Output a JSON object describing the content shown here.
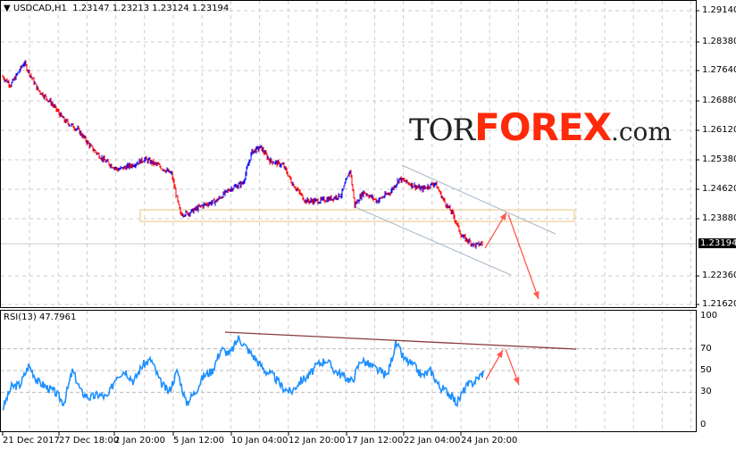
{
  "header": {
    "symbol": "USDCAD,H1",
    "open": "1.23147",
    "high": "1.23213",
    "low": "1.23124",
    "close": "1.23194"
  },
  "logo": {
    "part1": "TOR",
    "part2": "FOREX",
    "part3": ".com"
  },
  "price_axis": {
    "ticks": [
      "1.29140",
      "1.28380",
      "1.27640",
      "1.26880",
      "1.26120",
      "1.25380",
      "1.24620",
      "1.23880",
      "1.22360",
      "1.21620"
    ],
    "current": "1.23194"
  },
  "rsi": {
    "title": "RSI(13) 47.7961",
    "ticks": [
      "100",
      "70",
      "50",
      "30",
      "0"
    ]
  },
  "time_axis": {
    "ticks": [
      "21 Dec 2017",
      "27 Dec 18:00",
      "2 Jan 20:00",
      "5 Jan 12:00",
      "10 Jan 04:00",
      "12 Jan 20:00",
      "17 Jan 12:00",
      "22 Jan 04:00",
      "24 Jan 20:00"
    ]
  },
  "colors": {
    "bull": "#0000ff",
    "bear": "#ff0000",
    "rsi": "#1e90ff",
    "arrow": "#ff5a4e",
    "channel": "#a8b8c8",
    "trend": "#8b3a3a"
  },
  "chart_data": {
    "type": "candlestick",
    "price_range": [
      1.2162,
      1.2914
    ],
    "price_key": [
      [
        0,
        1.2747
      ],
      [
        10,
        1.2724
      ],
      [
        25,
        1.2781
      ],
      [
        40,
        1.2713
      ],
      [
        55,
        1.2679
      ],
      [
        70,
        1.2633
      ],
      [
        85,
        1.261
      ],
      [
        100,
        1.2564
      ],
      [
        115,
        1.253
      ],
      [
        130,
        1.2507
      ],
      [
        145,
        1.2518
      ],
      [
        160,
        1.2534
      ],
      [
        175,
        1.2518
      ],
      [
        190,
        1.2496
      ],
      [
        200,
        1.2393
      ],
      [
        210,
        1.2397
      ],
      [
        225,
        1.2416
      ],
      [
        240,
        1.2427
      ],
      [
        255,
        1.2457
      ],
      [
        270,
        1.2473
      ],
      [
        280,
        1.2553
      ],
      [
        290,
        1.2564
      ],
      [
        300,
        1.253
      ],
      [
        315,
        1.2518
      ],
      [
        325,
        1.2473
      ],
      [
        340,
        1.2427
      ],
      [
        355,
        1.2427
      ],
      [
        370,
        1.2434
      ],
      [
        380,
        1.2443
      ],
      [
        390,
        1.2507
      ],
      [
        395,
        1.2416
      ],
      [
        405,
        1.245
      ],
      [
        420,
        1.2427
      ],
      [
        435,
        1.245
      ],
      [
        445,
        1.2484
      ],
      [
        455,
        1.2473
      ],
      [
        470,
        1.2457
      ],
      [
        485,
        1.2473
      ],
      [
        495,
        1.2427
      ],
      [
        505,
        1.2393
      ],
      [
        515,
        1.2336
      ],
      [
        530,
        1.2313
      ],
      [
        538,
        1.2319
      ]
    ],
    "rsi_range": [
      0,
      100
    ],
    "rsi_values": [
      15,
      35,
      37,
      55,
      40,
      35,
      30,
      20,
      50,
      30,
      25,
      28,
      25,
      45,
      50,
      40,
      55,
      60,
      40,
      30,
      50,
      20,
      30,
      45,
      50,
      70,
      65,
      80,
      70,
      60,
      50,
      45,
      35,
      30,
      40,
      45,
      55,
      60,
      50,
      45,
      40,
      60,
      55,
      50,
      45,
      75,
      60,
      55,
      45,
      50,
      35,
      30,
      20,
      35,
      40,
      48
    ],
    "rsi_levels": [
      70,
      50,
      30
    ]
  }
}
